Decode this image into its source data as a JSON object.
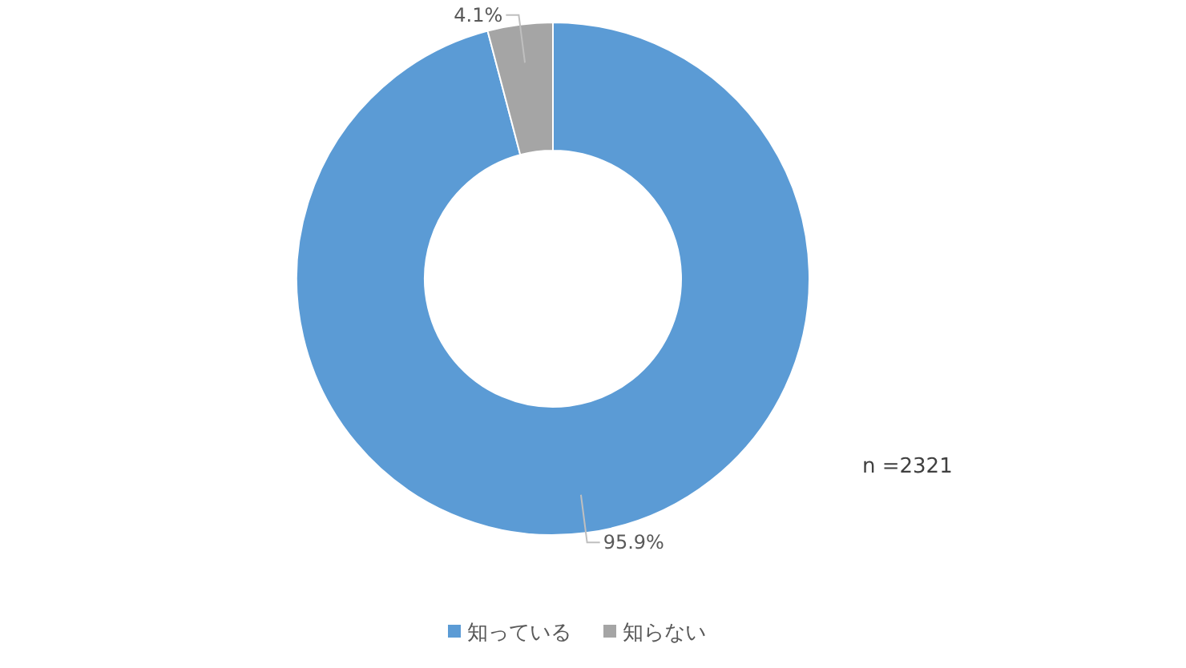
{
  "chart_data": {
    "type": "donut",
    "categories": [
      "知っている",
      "知らない"
    ],
    "values": [
      95.9,
      4.1
    ],
    "colors": [
      "#5b9bd5",
      "#a5a5a5"
    ],
    "value_labels": [
      "95.9%",
      "4.1%"
    ],
    "annotations": [
      "n =2321"
    ],
    "legend": "bottom"
  }
}
